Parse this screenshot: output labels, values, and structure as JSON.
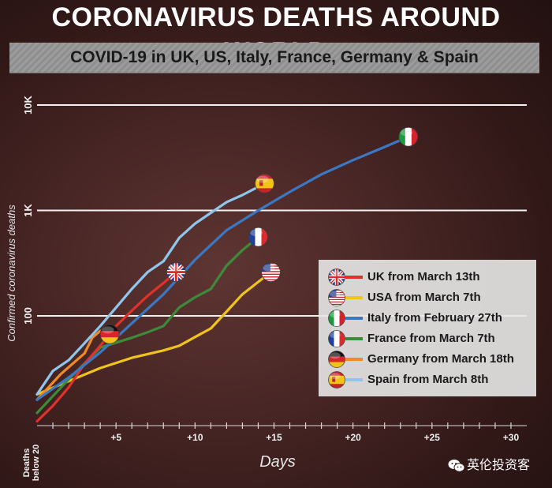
{
  "header": {
    "title": "CORONAVIRUS DEATHS AROUND WORLD",
    "subtitle": "COVID-19 in UK, US, Italy, France, Germany & Spain"
  },
  "chart_data": {
    "type": "line",
    "title": "CORONAVIRUS DEATHS AROUND WORLD",
    "subtitle": "COVID-19 in UK, US, Italy, France, Germany & Spain",
    "xlabel": "Days",
    "ylabel": "Confirmed coronavirus deaths",
    "y_scale": "log",
    "xlim": [
      0,
      31
    ],
    "ylim": [
      10,
      15000
    ],
    "x_ticks": [
      {
        "value": 0,
        "label": "Deaths below 20"
      },
      {
        "value": 5,
        "label": "+5"
      },
      {
        "value": 10,
        "label": "+10"
      },
      {
        "value": 15,
        "label": "+15"
      },
      {
        "value": 20,
        "label": "+20"
      },
      {
        "value": 25,
        "label": "+25"
      },
      {
        "value": 30,
        "label": "+30"
      }
    ],
    "y_ticks": [
      {
        "value": 100,
        "label": "100"
      },
      {
        "value": 1000,
        "label": "1K"
      },
      {
        "value": 10000,
        "label": "10K"
      }
    ],
    "grid": "horizontal",
    "legend_position": "right",
    "series": [
      {
        "name": "UK from March 13th",
        "color": "#e0312b",
        "flag": "uk",
        "x": [
          0,
          1,
          2,
          3,
          4,
          5,
          6,
          7,
          8,
          8.8
        ],
        "y": [
          10,
          14,
          21,
          35,
          52,
          80,
          112,
          155,
          205,
          260
        ]
      },
      {
        "name": "USA from March 7th",
        "color": "#f0c419",
        "flag": "us",
        "x": [
          0,
          2,
          4,
          6,
          8,
          9,
          10,
          11,
          12,
          13,
          14,
          14.8
        ],
        "y": [
          18,
          24,
          32,
          40,
          47,
          52,
          63,
          76,
          110,
          160,
          210,
          260
        ]
      },
      {
        "name": "Italy from February 27th",
        "color": "#3b78c4",
        "flag": "it",
        "x": [
          0,
          2,
          4,
          6,
          8,
          10,
          12,
          14,
          16,
          18,
          20,
          22,
          23.5
        ],
        "y": [
          16,
          26,
          45,
          85,
          160,
          340,
          650,
          1000,
          1500,
          2200,
          3000,
          4000,
          5000
        ]
      },
      {
        "name": "France from March 7th",
        "color": "#3d8a3a",
        "flag": "fr",
        "x": [
          0,
          2,
          4,
          6,
          7,
          8,
          9,
          10,
          11,
          12,
          13,
          14
        ],
        "y": [
          12,
          25,
          50,
          62,
          70,
          80,
          120,
          150,
          180,
          300,
          420,
          560
        ]
      },
      {
        "name": "Germany from March 18th",
        "color": "#f08a24",
        "flag": "de",
        "x": [
          0,
          1.5,
          3,
          3.5,
          4,
          4.6
        ],
        "y": [
          16,
          28,
          44,
          62,
          72,
          67
        ]
      },
      {
        "name": "Spain from March 8th",
        "color": "#8ec6ec",
        "flag": "es",
        "x": [
          0,
          1,
          2,
          3,
          4,
          5,
          6,
          7,
          8,
          9,
          10,
          11,
          12,
          13,
          14.4
        ],
        "y": [
          18,
          30,
          38,
          55,
          80,
          120,
          180,
          260,
          330,
          550,
          750,
          950,
          1200,
          1400,
          1800
        ]
      }
    ]
  },
  "watermark": {
    "text": "英伦投资客"
  }
}
